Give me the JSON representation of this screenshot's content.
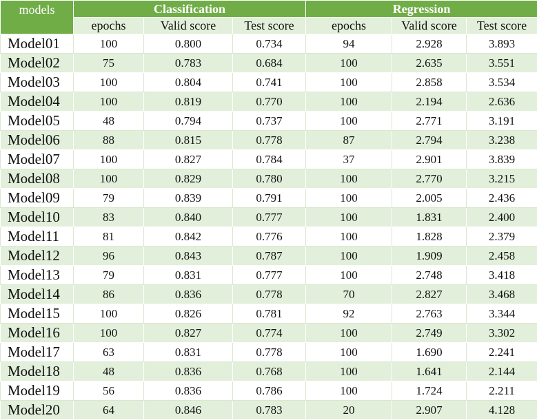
{
  "header": {
    "models_label": "models",
    "groups": [
      "Classification",
      "Regression"
    ],
    "columns": [
      "epochs",
      "Valid score",
      "Test score",
      "epochs",
      "Valid score",
      "Test score"
    ]
  },
  "rows": [
    [
      "Model01",
      "100",
      "0.800",
      "0.734",
      "94",
      "2.928",
      "3.893"
    ],
    [
      "Model02",
      "75",
      "0.783",
      "0.684",
      "100",
      "2.635",
      "3.551"
    ],
    [
      "Model03",
      "100",
      "0.804",
      "0.741",
      "100",
      "2.858",
      "3.534"
    ],
    [
      "Model04",
      "100",
      "0.819",
      "0.770",
      "100",
      "2.194",
      "2.636"
    ],
    [
      "Model05",
      "48",
      "0.794",
      "0.737",
      "100",
      "2.771",
      "3.191"
    ],
    [
      "Model06",
      "88",
      "0.815",
      "0.778",
      "87",
      "2.794",
      "3.238"
    ],
    [
      "Model07",
      "100",
      "0.827",
      "0.784",
      "37",
      "2.901",
      "3.839"
    ],
    [
      "Model08",
      "100",
      "0.829",
      "0.780",
      "100",
      "2.770",
      "3.215"
    ],
    [
      "Model09",
      "79",
      "0.839",
      "0.791",
      "100",
      "2.005",
      "2.436"
    ],
    [
      "Model10",
      "83",
      "0.840",
      "0.777",
      "100",
      "1.831",
      "2.400"
    ],
    [
      "Model11",
      "81",
      "0.842",
      "0.776",
      "100",
      "1.828",
      "2.379"
    ],
    [
      "Model12",
      "96",
      "0.843",
      "0.787",
      "100",
      "1.909",
      "2.458"
    ],
    [
      "Model13",
      "79",
      "0.831",
      "0.777",
      "100",
      "2.748",
      "3.418"
    ],
    [
      "Model14",
      "86",
      "0.836",
      "0.778",
      "70",
      "2.827",
      "3.468"
    ],
    [
      "Model15",
      "100",
      "0.826",
      "0.781",
      "92",
      "2.763",
      "3.344"
    ],
    [
      "Model16",
      "100",
      "0.827",
      "0.774",
      "100",
      "2.749",
      "3.302"
    ],
    [
      "Model17",
      "63",
      "0.831",
      "0.778",
      "100",
      "1.690",
      "2.241"
    ],
    [
      "Model18",
      "48",
      "0.836",
      "0.768",
      "100",
      "1.641",
      "2.144"
    ],
    [
      "Model19",
      "56",
      "0.836",
      "0.786",
      "100",
      "1.724",
      "2.211"
    ],
    [
      "Model20",
      "64",
      "0.846",
      "0.783",
      "20",
      "2.907",
      "4.128"
    ]
  ],
  "colors": {
    "header_green": "#70ad47",
    "band_light": "#e2efda",
    "band_white": "#ffffff"
  }
}
